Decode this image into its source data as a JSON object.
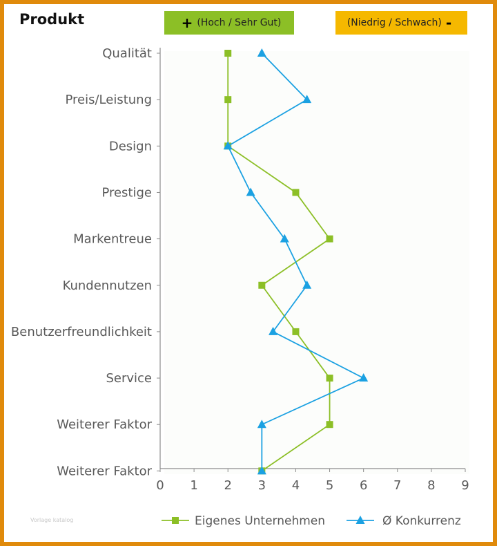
{
  "header": {
    "title": "Produkt",
    "high_symbol": "+",
    "high_label": "(Hoch / Sehr Gut)",
    "low_label": "(Niedrig / Schwach)",
    "low_symbol": "-"
  },
  "watermark": "Vorlage katalog",
  "colors": {
    "border": "#E08A0B",
    "high_badge": "#8CBF26",
    "low_badge": "#F5B800",
    "series_own": "#8CBF26",
    "series_comp": "#1BA1E2"
  },
  "chart_data": {
    "type": "line",
    "orientation": "vertical-categories",
    "title": "",
    "categories": [
      "Qualität",
      "Preis/Leistung",
      "Design",
      "Prestige",
      "Markentreue",
      "Kundennutzen",
      "Benutzerfreundlichkeit",
      "Service",
      "Weiterer Faktor",
      "Weiterer Faktor"
    ],
    "xlim": [
      0,
      9
    ],
    "xticks": [
      "0",
      "1",
      "2",
      "3",
      "4",
      "5",
      "6",
      "7",
      "8",
      "9"
    ],
    "grid": false,
    "legend": "bottom",
    "series": [
      {
        "name": "Eigenes Unternehmen",
        "marker": "square",
        "color": "#8CBF26",
        "values": [
          2,
          2,
          2,
          4,
          5,
          3,
          4,
          5,
          5,
          3
        ]
      },
      {
        "name": "Ø Konkurrenz",
        "marker": "triangle",
        "color": "#1BA1E2",
        "values": [
          3,
          4.33,
          2,
          2.67,
          3.67,
          4.33,
          3.33,
          6,
          3,
          3
        ]
      }
    ]
  }
}
